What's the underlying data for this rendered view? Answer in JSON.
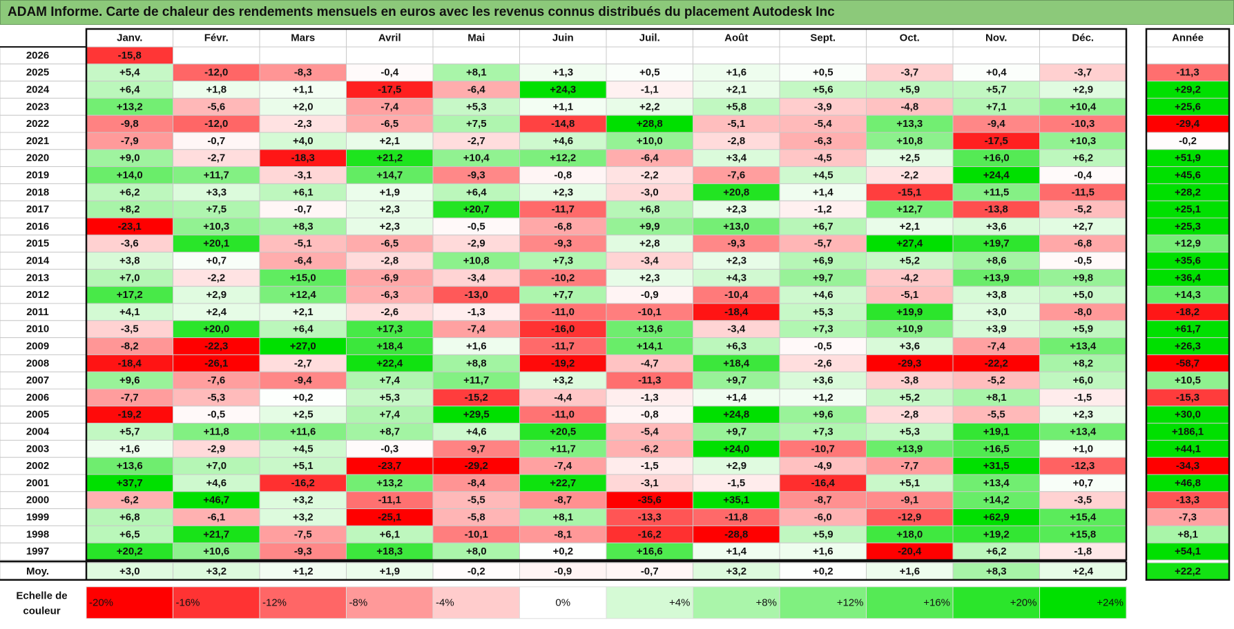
{
  "title": "ADAM Informe. Carte de chaleur des rendements mensuels en euros avec les revenus connus distribués du placement Autodesk Inc",
  "chart_data": {
    "type": "heatmap",
    "title": "ADAM Informe. Carte de chaleur des rendements mensuels en euros avec les revenus connus distribués du placement Autodesk Inc",
    "columns": [
      "Janv.",
      "Févr.",
      "Mars",
      "Avril",
      "Mai",
      "Juin",
      "Juil.",
      "Août",
      "Sept.",
      "Oct.",
      "Nov.",
      "Déc."
    ],
    "annual_header": "Année",
    "rows": [
      {
        "year": "2026",
        "values": [
          "-15,8",
          "",
          "",
          "",
          "",
          "",
          "",
          "",
          "",
          "",
          "",
          ""
        ],
        "annual": ""
      },
      {
        "year": "2025",
        "values": [
          "+5,4",
          "-12,0",
          "-8,3",
          "-0,4",
          "+8,1",
          "+1,3",
          "+0,5",
          "+1,6",
          "+0,5",
          "-3,7",
          "+0,4",
          "-3,7"
        ],
        "annual": "-11,3"
      },
      {
        "year": "2024",
        "values": [
          "+6,4",
          "+1,8",
          "+1,1",
          "-17,5",
          "-6,4",
          "+24,3",
          "-1,1",
          "+2,1",
          "+5,6",
          "+5,9",
          "+5,7",
          "+2,9"
        ],
        "annual": "+29,2"
      },
      {
        "year": "2023",
        "values": [
          "+13,2",
          "-5,6",
          "+2,0",
          "-7,4",
          "+5,3",
          "+1,1",
          "+2,2",
          "+5,8",
          "-3,9",
          "-4,8",
          "+7,1",
          "+10,4"
        ],
        "annual": "+25,6"
      },
      {
        "year": "2022",
        "values": [
          "-9,8",
          "-12,0",
          "-2,3",
          "-6,5",
          "+7,5",
          "-14,8",
          "+28,8",
          "-5,1",
          "-5,4",
          "+13,3",
          "-9,4",
          "-10,3"
        ],
        "annual": "-29,4"
      },
      {
        "year": "2021",
        "values": [
          "-7,9",
          "-0,7",
          "+4,0",
          "+2,1",
          "-2,7",
          "+4,6",
          "+10,0",
          "-2,8",
          "-6,3",
          "+10,8",
          "-17,5",
          "+10,3"
        ],
        "annual": "-0,2"
      },
      {
        "year": "2020",
        "values": [
          "+9,0",
          "-2,7",
          "-18,3",
          "+21,2",
          "+10,4",
          "+12,2",
          "-6,4",
          "+3,4",
          "-4,5",
          "+2,5",
          "+16,0",
          "+6,2"
        ],
        "annual": "+51,9"
      },
      {
        "year": "2019",
        "values": [
          "+14,0",
          "+11,7",
          "-3,1",
          "+14,7",
          "-9,3",
          "-0,8",
          "-2,2",
          "-7,6",
          "+4,5",
          "-2,2",
          "+24,4",
          "-0,4"
        ],
        "annual": "+45,6"
      },
      {
        "year": "2018",
        "values": [
          "+6,2",
          "+3,3",
          "+6,1",
          "+1,9",
          "+6,4",
          "+2,3",
          "-3,0",
          "+20,8",
          "+1,4",
          "-15,1",
          "+11,5",
          "-11,5"
        ],
        "annual": "+28,2"
      },
      {
        "year": "2017",
        "values": [
          "+8,2",
          "+7,5",
          "-0,7",
          "+2,3",
          "+20,7",
          "-11,7",
          "+6,8",
          "+2,3",
          "-1,2",
          "+12,7",
          "-13,8",
          "-5,2"
        ],
        "annual": "+25,1"
      },
      {
        "year": "2016",
        "values": [
          "-23,1",
          "+10,3",
          "+8,3",
          "+2,3",
          "-0,5",
          "-6,8",
          "+9,9",
          "+13,0",
          "+6,7",
          "+2,1",
          "+3,6",
          "+2,7"
        ],
        "annual": "+25,3"
      },
      {
        "year": "2015",
        "values": [
          "-3,6",
          "+20,1",
          "-5,1",
          "-6,5",
          "-2,9",
          "-9,3",
          "+2,8",
          "-9,3",
          "-5,7",
          "+27,4",
          "+19,7",
          "-6,8"
        ],
        "annual": "+12,9"
      },
      {
        "year": "2014",
        "values": [
          "+3,8",
          "+0,7",
          "-6,4",
          "-2,8",
          "+10,8",
          "+7,3",
          "-3,4",
          "+2,3",
          "+6,9",
          "+5,2",
          "+8,6",
          "-0,5"
        ],
        "annual": "+35,6"
      },
      {
        "year": "2013",
        "values": [
          "+7,0",
          "-2,2",
          "+15,0",
          "-6,9",
          "-3,4",
          "-10,2",
          "+2,3",
          "+4,3",
          "+9,7",
          "-4,2",
          "+13,9",
          "+9,8"
        ],
        "annual": "+36,4"
      },
      {
        "year": "2012",
        "values": [
          "+17,2",
          "+2,9",
          "+12,4",
          "-6,3",
          "-13,0",
          "+7,7",
          "-0,9",
          "-10,4",
          "+4,6",
          "-5,1",
          "+3,8",
          "+5,0"
        ],
        "annual": "+14,3"
      },
      {
        "year": "2011",
        "values": [
          "+4,1",
          "+2,4",
          "+2,1",
          "-2,6",
          "-1,3",
          "-11,0",
          "-10,1",
          "-18,4",
          "+5,3",
          "+19,9",
          "+3,0",
          "-8,0"
        ],
        "annual": "-18,2"
      },
      {
        "year": "2010",
        "values": [
          "-3,5",
          "+20,0",
          "+6,4",
          "+17,3",
          "-7,4",
          "-16,0",
          "+13,6",
          "-3,4",
          "+7,3",
          "+10,9",
          "+3,9",
          "+5,9"
        ],
        "annual": "+61,7"
      },
      {
        "year": "2009",
        "values": [
          "-8,2",
          "-22,3",
          "+27,0",
          "+18,4",
          "+1,6",
          "-11,7",
          "+14,1",
          "+6,3",
          "-0,5",
          "+3,6",
          "-7,4",
          "+13,4"
        ],
        "annual": "+26,3"
      },
      {
        "year": "2008",
        "values": [
          "-18,4",
          "-26,1",
          "-2,7",
          "+22,4",
          "+8,8",
          "-19,2",
          "-4,7",
          "+18,4",
          "-2,6",
          "-29,3",
          "-22,2",
          "+8,2"
        ],
        "annual": "-58,7"
      },
      {
        "year": "2007",
        "values": [
          "+9,6",
          "-7,6",
          "-9,4",
          "+7,4",
          "+11,7",
          "+3,2",
          "-11,3",
          "+9,7",
          "+3,6",
          "-3,8",
          "-5,2",
          "+6,0"
        ],
        "annual": "+10,5"
      },
      {
        "year": "2006",
        "values": [
          "-7,7",
          "-5,3",
          "+0,2",
          "+5,3",
          "-15,2",
          "-4,4",
          "-1,3",
          "+1,4",
          "+1,2",
          "+5,2",
          "+8,1",
          "-1,5"
        ],
        "annual": "-15,3"
      },
      {
        "year": "2005",
        "values": [
          "-19,2",
          "-0,5",
          "+2,5",
          "+7,4",
          "+29,5",
          "-11,0",
          "-0,8",
          "+24,8",
          "+9,6",
          "-2,8",
          "-5,5",
          "+2,3"
        ],
        "annual": "+30,0"
      },
      {
        "year": "2004",
        "values": [
          "+5,7",
          "+11,8",
          "+11,6",
          "+8,7",
          "+4,6",
          "+20,5",
          "-5,4",
          "+9,7",
          "+7,3",
          "+5,3",
          "+19,1",
          "+13,4"
        ],
        "annual": "+186,1"
      },
      {
        "year": "2003",
        "values": [
          "+1,6",
          "-2,9",
          "+4,5",
          "-0,3",
          "-9,7",
          "+11,7",
          "-6,2",
          "+24,0",
          "-10,7",
          "+13,9",
          "+16,5",
          "+1,0"
        ],
        "annual": "+44,1"
      },
      {
        "year": "2002",
        "values": [
          "+13,6",
          "+7,0",
          "+5,1",
          "-23,7",
          "-29,2",
          "-7,4",
          "-1,5",
          "+2,9",
          "-4,9",
          "-7,7",
          "+31,5",
          "-12,3"
        ],
        "annual": "-34,3"
      },
      {
        "year": "2001",
        "values": [
          "+37,7",
          "+4,6",
          "-16,2",
          "+13,2",
          "-8,4",
          "+22,7",
          "-3,1",
          "-1,5",
          "-16,4",
          "+5,1",
          "+13,4",
          "+0,7"
        ],
        "annual": "+46,8"
      },
      {
        "year": "2000",
        "values": [
          "-6,2",
          "+46,7",
          "+3,2",
          "-11,1",
          "-5,5",
          "-8,7",
          "-35,6",
          "+35,1",
          "-8,7",
          "-9,1",
          "+14,2",
          "-3,5"
        ],
        "annual": "-13,3"
      },
      {
        "year": "1999",
        "values": [
          "+6,8",
          "-6,1",
          "+3,2",
          "-25,1",
          "-5,8",
          "+8,1",
          "-13,3",
          "-11,8",
          "-6,0",
          "-12,9",
          "+62,9",
          "+15,4"
        ],
        "annual": "-7,3"
      },
      {
        "year": "1998",
        "values": [
          "+6,5",
          "+21,7",
          "-7,5",
          "+6,1",
          "-10,1",
          "-8,1",
          "-16,2",
          "-28,8",
          "+5,9",
          "+18,0",
          "+19,2",
          "+15,8"
        ],
        "annual": "+8,1"
      },
      {
        "year": "1997",
        "values": [
          "+20,2",
          "+10,6",
          "-9,3",
          "+18,3",
          "+8,0",
          "+0,2",
          "+16,6",
          "+1,4",
          "+1,6",
          "-20,4",
          "+6,2",
          "-1,8"
        ],
        "annual": "+54,1"
      }
    ],
    "average": {
      "label": "Moy.",
      "values": [
        "+3,0",
        "+3,2",
        "+1,2",
        "+1,9",
        "-0,2",
        "-0,9",
        "-0,7",
        "+3,2",
        "+0,2",
        "+1,6",
        "+8,3",
        "+2,4"
      ],
      "annual": "+22,2"
    },
    "scale": {
      "label_line1": "Echelle de",
      "label_line2": "couleur",
      "items": [
        "-20%",
        "-16%",
        "-12%",
        "-8%",
        "-4%",
        "0%",
        "+4%",
        "+8%",
        "+12%",
        "+16%",
        "+20%",
        "+24%"
      ],
      "values": [
        -20,
        -16,
        -12,
        -8,
        -4,
        0,
        4,
        8,
        12,
        16,
        20,
        24
      ]
    },
    "colors": {
      "negative": "#ff0000",
      "zero": "#ffffff",
      "positive": "#00e000",
      "title_bg": "#8cc97a"
    }
  }
}
